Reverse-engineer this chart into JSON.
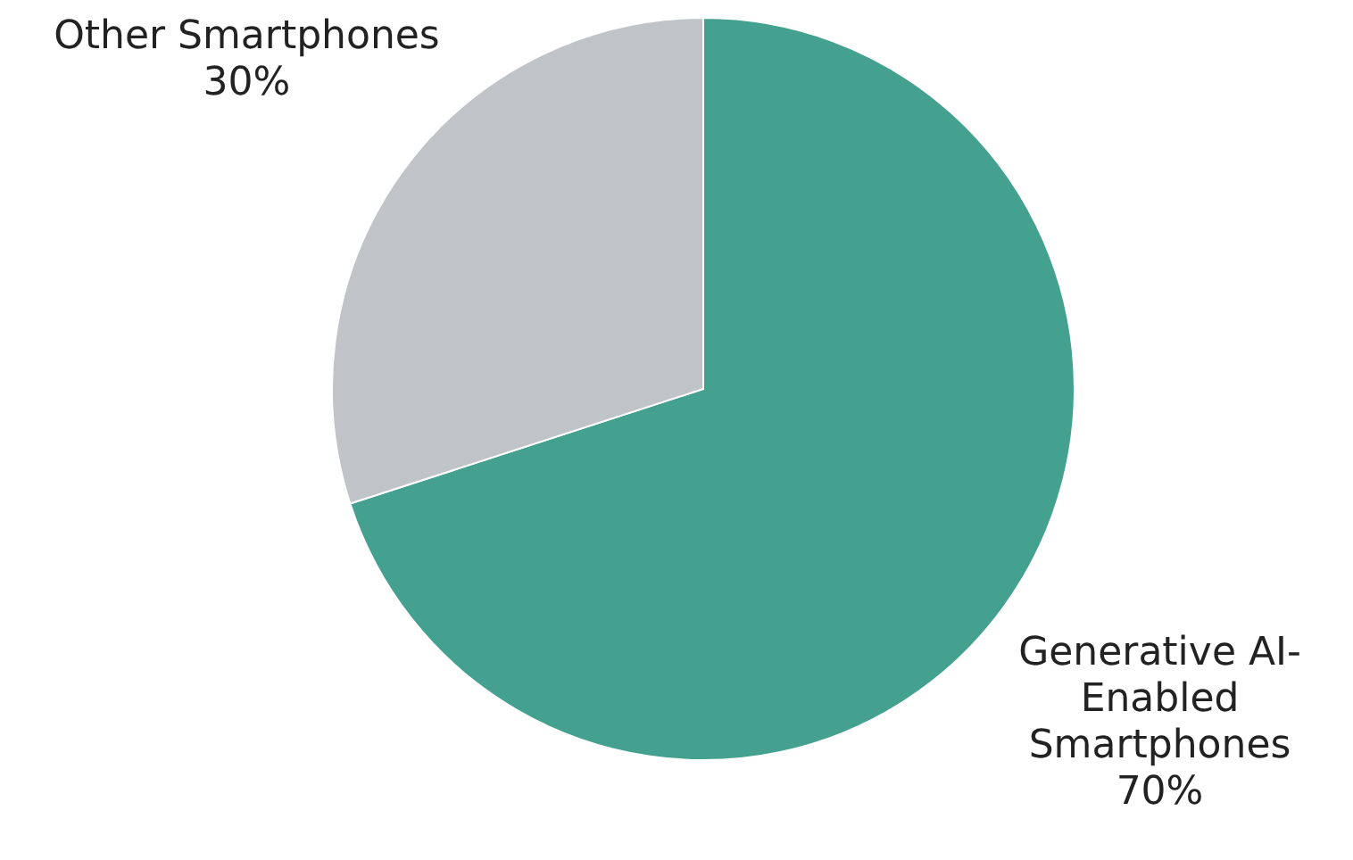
{
  "chart_data": {
    "type": "pie",
    "categories": [
      "Other Smartphones",
      "Generative AI-Enabled Smartphones"
    ],
    "values": [
      30,
      70
    ],
    "colors": [
      "#c0c3c7",
      "#44a08f"
    ],
    "value_labels": [
      "30%",
      "70%"
    ]
  }
}
